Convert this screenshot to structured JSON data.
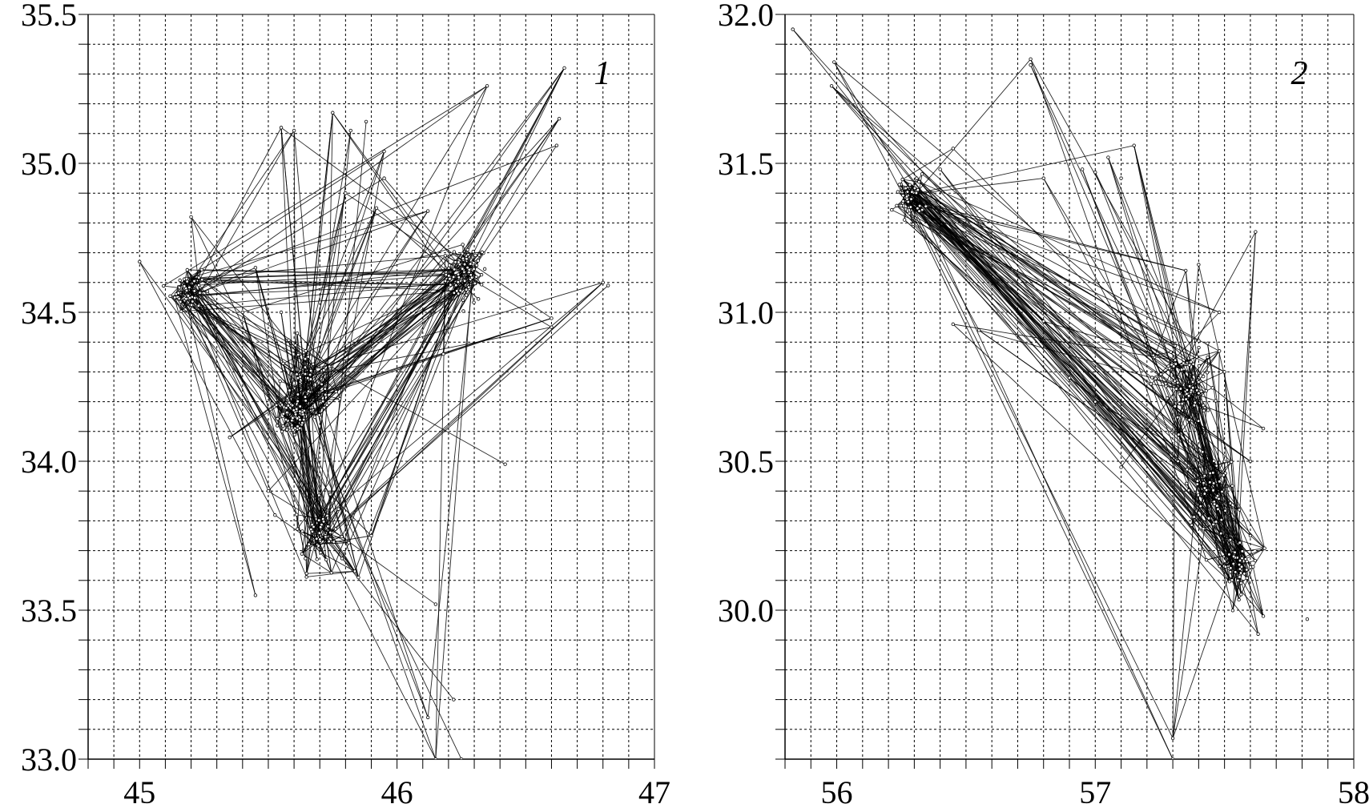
{
  "figure": {
    "background": "#ffffff",
    "ink": "#000000"
  },
  "chart_data": [
    {
      "type": "line",
      "panel_label": "1",
      "xlim": [
        44.8,
        47.0
      ],
      "ylim": [
        33.0,
        35.5
      ],
      "x_ticks": [
        "45",
        "46",
        "47"
      ],
      "y_ticks": [
        "33.0",
        "33.5",
        "34.0",
        "34.5",
        "35.0",
        "35.5"
      ],
      "x_minor_step": 0.1,
      "y_minor_step": 0.1,
      "grid": true,
      "grid_style": "dotted",
      "legend": "none",
      "clusters": [
        {
          "x": 46.27,
          "y": 34.63,
          "spread": 0.04
        },
        {
          "x": 45.65,
          "y": 34.25,
          "spread": 0.06
        },
        {
          "x": 45.6,
          "y": 34.15,
          "spread": 0.03
        },
        {
          "x": 45.7,
          "y": 33.75,
          "spread": 0.05
        },
        {
          "x": 45.18,
          "y": 34.58,
          "spread": 0.03
        }
      ],
      "outliers": [
        [
          45.0,
          34.67
        ],
        [
          45.2,
          34.82
        ],
        [
          45.35,
          34.08
        ],
        [
          45.45,
          33.55
        ],
        [
          45.55,
          35.12
        ],
        [
          45.6,
          35.11
        ],
        [
          45.75,
          35.17
        ],
        [
          45.82,
          35.11
        ],
        [
          45.88,
          35.14
        ],
        [
          45.95,
          35.04
        ],
        [
          46.35,
          35.26
        ],
        [
          46.65,
          35.32
        ],
        [
          46.63,
          35.15
        ],
        [
          46.62,
          35.06
        ],
        [
          46.82,
          34.59
        ],
        [
          46.6,
          34.48
        ],
        [
          46.42,
          33.99
        ],
        [
          46.15,
          33.52
        ],
        [
          46.12,
          33.14
        ],
        [
          46.15,
          33.0
        ],
        [
          46.22,
          33.2
        ],
        [
          46.25,
          33.0
        ],
        [
          46.12,
          34.84
        ],
        [
          45.92,
          34.85
        ],
        [
          46.18,
          34.36
        ],
        [
          45.4,
          34.5
        ],
        [
          45.5,
          33.9
        ],
        [
          45.9,
          33.75
        ],
        [
          45.85,
          33.61
        ],
        [
          45.45,
          34.65
        ],
        [
          46.6,
          34.45
        ],
        [
          46.8,
          34.6
        ],
        [
          45.8,
          34.9
        ],
        [
          45.55,
          34.5
        ],
        [
          45.95,
          34.95
        ]
      ]
    },
    {
      "type": "line",
      "panel_label": "2",
      "xlim": [
        55.8,
        58.0
      ],
      "ylim": [
        29.5,
        32.0
      ],
      "x_ticks": [
        "56",
        "57",
        "58"
      ],
      "y_ticks": [
        "30.0",
        "30.5",
        "31.0",
        "31.5",
        "32.0"
      ],
      "x_minor_step": 0.1,
      "y_minor_step": 0.1,
      "grid": true,
      "grid_style": "dotted",
      "legend": "none",
      "clusters": [
        {
          "x": 57.35,
          "y": 30.75,
          "spread": 0.06
        },
        {
          "x": 56.28,
          "y": 31.39,
          "spread": 0.03
        },
        {
          "x": 57.45,
          "y": 30.4,
          "spread": 0.05
        },
        {
          "x": 57.55,
          "y": 30.15,
          "spread": 0.04
        }
      ],
      "outliers": [
        [
          55.83,
          31.95
        ],
        [
          55.99,
          31.84
        ],
        [
          55.98,
          31.76
        ],
        [
          56.45,
          31.55
        ],
        [
          56.4,
          31.48
        ],
        [
          56.45,
          30.96
        ],
        [
          56.55,
          30.94
        ],
        [
          56.75,
          31.85
        ],
        [
          56.75,
          31.83
        ],
        [
          56.8,
          31.45
        ],
        [
          56.8,
          30.97
        ],
        [
          56.95,
          31.48
        ],
        [
          57.0,
          31.47
        ],
        [
          57.05,
          31.52
        ],
        [
          57.1,
          31.45
        ],
        [
          57.15,
          31.56
        ],
        [
          57.35,
          31.14
        ],
        [
          57.4,
          31.16
        ],
        [
          57.48,
          31.0
        ],
        [
          57.62,
          31.27
        ],
        [
          57.48,
          30.87
        ],
        [
          57.65,
          30.61
        ],
        [
          57.6,
          30.5
        ],
        [
          57.6,
          30.25
        ],
        [
          57.65,
          29.98
        ],
        [
          57.63,
          29.92
        ],
        [
          57.82,
          29.97
        ],
        [
          57.1,
          30.48
        ],
        [
          57.3,
          29.57
        ],
        [
          57.3,
          29.5
        ],
        [
          57.32,
          30.5
        ],
        [
          56.9,
          30.78
        ],
        [
          57.5,
          30.8
        ],
        [
          57.0,
          30.7
        ]
      ]
    }
  ]
}
